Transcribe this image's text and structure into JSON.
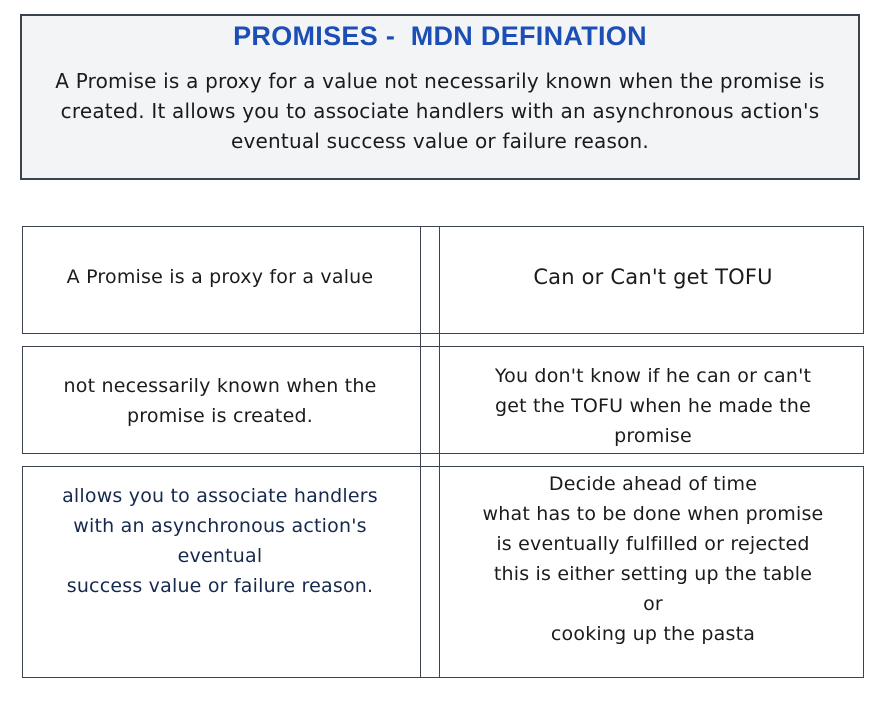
{
  "definition": {
    "title": "PROMISES -  MDN DEFINATION",
    "body": "A Promise is a proxy for a value not necessarily known when the promise is created. It allows you to associate handlers with an asynchronous action's eventual success value or failure reason."
  },
  "rows": [
    {
      "left": [
        "A Promise is a proxy for a value"
      ],
      "right": [
        "Can or Can't get TOFU"
      ]
    },
    {
      "left": [
        "not necessarily known when the",
        "promise is created."
      ],
      "right": [
        "You don't know if he can or can't",
        "get the TOFU when he made the",
        "promise"
      ]
    },
    {
      "left": [
        "allows you to associate handlers",
        "with an asynchronous action's",
        "eventual",
        "success value or failure reason."
      ],
      "right": [
        "Decide ahead of time",
        "what has to be done when promise",
        "is eventually fulfilled or rejected",
        "this is either setting up the table",
        "or",
        "cooking up the pasta"
      ]
    }
  ],
  "colors": {
    "title": "#1b4fb6",
    "definition_background": "#f3f4f6",
    "border": "#3b4350",
    "text_navy": "#16294d"
  }
}
